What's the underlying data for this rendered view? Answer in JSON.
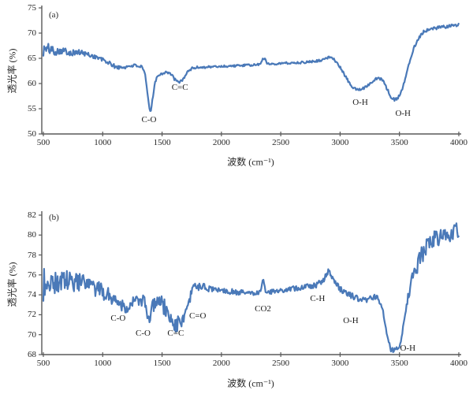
{
  "chart_data": [
    {
      "id": "a",
      "type": "line",
      "panel_label": "(a)",
      "title": "",
      "xlabel": "波数 (cm⁻¹)",
      "ylabel": "透光率 (%)",
      "xlim": [
        500,
        4000
      ],
      "ylim": [
        50,
        75
      ],
      "x_ticks": [
        500,
        1000,
        1500,
        2000,
        2500,
        3000,
        3500,
        4000
      ],
      "y_ticks": [
        50,
        55,
        60,
        65,
        70,
        75
      ],
      "grid": false,
      "legend": "none",
      "line_color": "#4a79b8",
      "axis_color": "#595959",
      "series": [
        {
          "x": [
            500,
            550,
            600,
            650,
            700,
            750,
            800,
            850,
            900,
            950,
            1000,
            1050,
            1100,
            1150,
            1200,
            1250,
            1300,
            1330,
            1355,
            1375,
            1395,
            1405,
            1420,
            1440,
            1465,
            1500,
            1530,
            1560,
            1590,
            1620,
            1650,
            1675,
            1700,
            1725,
            1750,
            1800,
            1900,
            2000,
            2100,
            2200,
            2300,
            2330,
            2350,
            2365,
            2385,
            2420,
            2500,
            2600,
            2700,
            2800,
            2860,
            2910,
            2940,
            2970,
            3000,
            3050,
            3100,
            3150,
            3200,
            3250,
            3300,
            3330,
            3360,
            3400,
            3430,
            3460,
            3490,
            3520,
            3550,
            3580,
            3620,
            3660,
            3700,
            3750,
            3800,
            3900,
            4000
          ],
          "y": [
            66.6,
            66.9,
            66.4,
            66.6,
            66.3,
            66.1,
            66.2,
            65.9,
            65.6,
            65.2,
            64.7,
            64.1,
            63.4,
            63.1,
            63.3,
            63.6,
            63.5,
            63.2,
            62.0,
            58.5,
            54.6,
            54.5,
            57.0,
            60.3,
            61.6,
            62.0,
            62.3,
            62.1,
            61.4,
            60.4,
            60.3,
            60.8,
            61.8,
            62.5,
            63.0,
            63.2,
            63.3,
            63.4,
            63.5,
            63.6,
            63.7,
            63.9,
            65.1,
            64.9,
            64.0,
            63.9,
            64.0,
            64.1,
            64.2,
            64.5,
            64.7,
            65.3,
            65.1,
            64.2,
            63.2,
            61.2,
            59.3,
            58.7,
            59.1,
            60.0,
            61.0,
            61.1,
            60.6,
            58.7,
            57.3,
            56.8,
            57.2,
            58.6,
            61.0,
            64.0,
            67.0,
            69.0,
            70.2,
            70.8,
            71.0,
            71.3,
            71.6
          ]
        }
      ],
      "noise_profile": {
        "x": [
          500,
          560,
          650,
          800,
          1000,
          1300,
          1600,
          2000,
          2600,
          2900,
          3200,
          3600,
          4000
        ],
        "amp": [
          1.5,
          0.95,
          0.7,
          0.55,
          0.45,
          0.3,
          0.28,
          0.22,
          0.22,
          0.25,
          0.25,
          0.3,
          0.33
        ]
      },
      "annotations": [
        {
          "text": "C-O",
          "x": 1390,
          "y": 52.8
        },
        {
          "text": "C=C",
          "x": 1650,
          "y": 59.2
        },
        {
          "text": "O-H",
          "x": 3170,
          "y": 56.2
        },
        {
          "text": "O-H",
          "x": 3530,
          "y": 54.0
        }
      ]
    },
    {
      "id": "b",
      "type": "line",
      "panel_label": "(b)",
      "title": "",
      "xlabel": "波数 (cm⁻¹)",
      "ylabel": "透光率 (%)",
      "xlim": [
        500,
        4000
      ],
      "ylim": [
        68,
        82
      ],
      "x_ticks": [
        500,
        1000,
        1500,
        2000,
        2500,
        3000,
        3500,
        4000
      ],
      "y_ticks": [
        68,
        70,
        72,
        74,
        76,
        78,
        80,
        82
      ],
      "grid": false,
      "legend": "none",
      "line_color": "#4a79b8",
      "axis_color": "#595959",
      "series": [
        {
          "x": [
            500,
            550,
            600,
            650,
            700,
            750,
            800,
            850,
            900,
            950,
            1000,
            1050,
            1100,
            1150,
            1200,
            1250,
            1300,
            1350,
            1380,
            1400,
            1415,
            1440,
            1470,
            1500,
            1530,
            1560,
            1600,
            1630,
            1660,
            1690,
            1715,
            1735,
            1760,
            1800,
            1850,
            1900,
            2000,
            2100,
            2200,
            2300,
            2330,
            2350,
            2370,
            2420,
            2500,
            2600,
            2700,
            2800,
            2860,
            2900,
            2930,
            2960,
            3000,
            3050,
            3100,
            3150,
            3200,
            3250,
            3300,
            3330,
            3360,
            3400,
            3430,
            3460,
            3490,
            3520,
            3550,
            3580,
            3620,
            3660,
            3700,
            3750,
            3800,
            3850,
            3900,
            3950,
            4000
          ],
          "y": [
            74.8,
            75.6,
            75.1,
            75.4,
            75.4,
            75.2,
            75.3,
            75.0,
            74.8,
            74.5,
            74.3,
            74.0,
            73.6,
            73.1,
            72.7,
            73.2,
            73.5,
            73.3,
            72.0,
            70.9,
            72.5,
            73.4,
            73.5,
            73.1,
            72.5,
            71.7,
            71.1,
            71.0,
            71.4,
            71.9,
            72.3,
            73.5,
            74.9,
            74.8,
            74.8,
            74.6,
            74.5,
            74.3,
            74.2,
            74.2,
            74.3,
            75.8,
            74.4,
            74.3,
            74.4,
            74.6,
            74.8,
            75.0,
            75.4,
            76.4,
            75.9,
            75.2,
            74.6,
            74.2,
            73.9,
            73.6,
            73.5,
            73.6,
            73.8,
            73.5,
            72.4,
            69.6,
            68.5,
            68.4,
            68.6,
            69.8,
            72.2,
            74.4,
            76.0,
            77.3,
            78.3,
            79.1,
            79.6,
            79.9,
            80.1,
            80.3,
            80.7
          ]
        }
      ],
      "noise_profile": {
        "x": [
          500,
          560,
          650,
          800,
          1000,
          1200,
          1300,
          1400,
          1550,
          1680,
          1780,
          2100,
          2400,
          2800,
          3100,
          3350,
          3500,
          3600,
          3700,
          4000
        ],
        "amp": [
          1.9,
          1.4,
          1.1,
          0.95,
          0.85,
          0.6,
          0.55,
          0.7,
          0.9,
          0.8,
          0.35,
          0.28,
          0.22,
          0.28,
          0.3,
          0.3,
          0.25,
          0.7,
          0.9,
          0.85
        ]
      },
      "annotations": [
        {
          "text": "C-O",
          "x": 1130,
          "y": 71.6
        },
        {
          "text": "C-O",
          "x": 1340,
          "y": 70.1
        },
        {
          "text": "C=C",
          "x": 1615,
          "y": 70.1
        },
        {
          "text": "C=O",
          "x": 1800,
          "y": 71.9
        },
        {
          "text": "CO2",
          "x": 2350,
          "y": 72.6
        },
        {
          "text": "C-H",
          "x": 2810,
          "y": 73.6
        },
        {
          "text": "O-H",
          "x": 3090,
          "y": 71.4
        },
        {
          "text": "O-H",
          "x": 3570,
          "y": 68.6
        }
      ]
    }
  ]
}
